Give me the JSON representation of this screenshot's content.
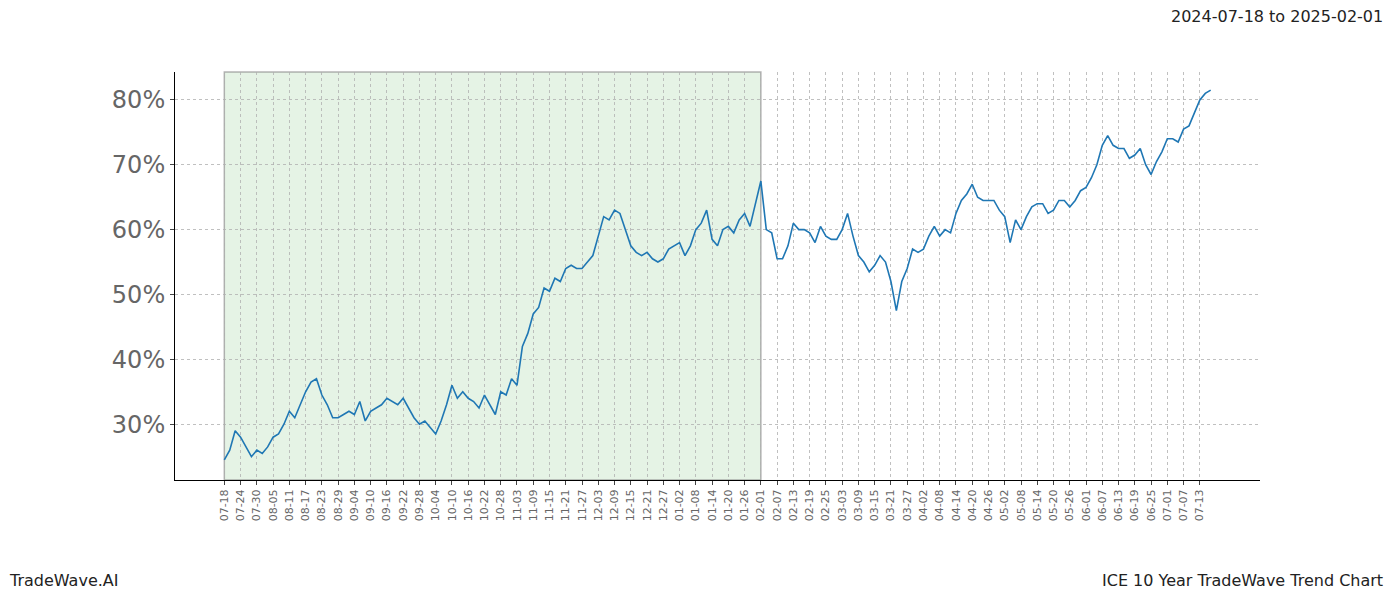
{
  "chart_data": {
    "type": "line",
    "title": "ICE 10 Year TradeWave Trend Chart",
    "subtitle": "2024-07-18 to 2025-02-01",
    "annotations": [
      "TradeWave.AI"
    ],
    "color": "#1f77b4",
    "grid": true,
    "highlight": {
      "from": "07-18",
      "to": "02-01"
    },
    "categories": [
      "07-18",
      null,
      null,
      "07-24",
      null,
      null,
      "07-30",
      null,
      null,
      "08-05",
      null,
      null,
      "08-11",
      null,
      null,
      "08-17",
      null,
      null,
      "08-23",
      null,
      null,
      "08-29",
      null,
      null,
      "09-04",
      null,
      null,
      "09-10",
      null,
      null,
      "09-16",
      null,
      null,
      "09-22",
      null,
      null,
      "09-28",
      null,
      null,
      "10-04",
      null,
      null,
      "10-10",
      null,
      null,
      "10-16",
      null,
      null,
      "10-22",
      null,
      null,
      "10-28",
      null,
      null,
      "11-03",
      null,
      null,
      "11-09",
      null,
      null,
      "11-15",
      null,
      null,
      "11-21",
      null,
      null,
      "11-27",
      null,
      null,
      "12-03",
      null,
      null,
      "12-09",
      null,
      null,
      "12-15",
      null,
      null,
      "12-21",
      null,
      null,
      "12-27",
      null,
      null,
      "01-02",
      null,
      null,
      "01-08",
      null,
      null,
      "01-14",
      null,
      null,
      "01-20",
      null,
      null,
      "01-26",
      null,
      null,
      "02-01",
      null,
      null,
      "02-07",
      null,
      null,
      "02-13",
      null,
      null,
      "02-19",
      null,
      null,
      "02-25",
      null,
      null,
      "03-03",
      null,
      null,
      "03-09",
      null,
      null,
      "03-15",
      null,
      null,
      "03-21",
      null,
      null,
      "03-27",
      null,
      null,
      "04-02",
      null,
      null,
      "04-08",
      null,
      null,
      "04-14",
      null,
      null,
      "04-20",
      null,
      null,
      "04-26",
      null,
      null,
      "05-02",
      null,
      null,
      "05-08",
      null,
      null,
      "05-14",
      null,
      null,
      "05-20",
      null,
      null,
      "05-26",
      null,
      null,
      "06-01",
      null,
      null,
      "06-07",
      null,
      null,
      "06-13",
      null,
      null,
      "06-19",
      null,
      null,
      "06-25",
      null,
      null,
      "07-01",
      null,
      null,
      "07-07",
      null,
      null,
      "07-13",
      null,
      null
    ],
    "values": [
      24.5,
      26,
      29,
      28,
      26.5,
      25,
      26,
      25.5,
      26.5,
      28,
      28.5,
      30,
      32,
      31,
      33,
      35,
      36.5,
      37,
      34.5,
      33,
      31,
      31,
      31.5,
      32,
      31.5,
      33.5,
      30.5,
      32,
      32.5,
      33,
      34,
      33.5,
      33,
      34,
      32.5,
      31,
      30,
      30.5,
      29.5,
      28.5,
      30.5,
      33,
      36,
      34,
      35,
      34,
      33.5,
      32.5,
      34.5,
      33,
      31.5,
      35,
      34.5,
      37,
      36,
      42,
      44,
      47,
      48,
      51,
      50.5,
      52.5,
      52,
      54,
      54.5,
      54,
      54,
      55,
      56,
      59,
      62,
      61.5,
      63,
      62.5,
      60,
      57.5,
      56.5,
      56,
      56.5,
      55.5,
      55,
      55.5,
      57,
      57.5,
      58,
      56,
      57.5,
      60,
      61,
      63,
      58.5,
      57.5,
      60,
      60.5,
      59.5,
      61.5,
      62.5,
      60.5,
      64,
      67.5,
      60,
      59.5,
      55.5,
      55.5,
      57.5,
      61,
      60,
      60,
      59.5,
      58,
      60.5,
      59,
      58.5,
      58.5,
      60,
      62.5,
      59,
      56,
      55,
      53.5,
      54.5,
      56,
      55,
      52,
      47.5,
      52,
      54,
      57,
      56.5,
      57,
      59,
      60.5,
      59,
      60,
      59.5,
      62.5,
      64.5,
      65.5,
      67,
      65,
      64.5,
      64.5,
      64.5,
      63,
      62,
      58,
      61.5,
      60,
      62,
      63.5,
      64,
      64,
      62.5,
      63,
      64.5,
      64.5,
      63.5,
      64.5,
      66,
      66.5,
      68,
      70,
      73,
      74.5,
      73,
      72.5,
      72.5,
      71,
      71.5,
      72.5,
      70,
      68.5,
      70.5,
      72,
      74,
      74,
      73.5,
      75.5,
      76,
      78,
      80,
      81,
      81.5
    ],
    "ylim": [
      21.4,
      84.3
    ],
    "yticks": [
      {
        "value": 30,
        "label": "30%"
      },
      {
        "value": 40,
        "label": "40%"
      },
      {
        "value": 50,
        "label": "50%"
      },
      {
        "value": 60,
        "label": "60%"
      },
      {
        "value": 70,
        "label": "70%"
      },
      {
        "value": 80,
        "label": "80%"
      }
    ]
  }
}
